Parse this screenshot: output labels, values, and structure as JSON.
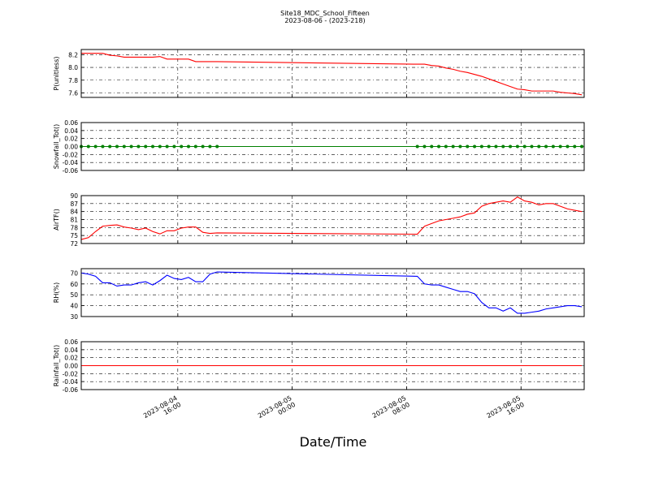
{
  "title": "Site18_MDC_School_Fifteen",
  "subtitle": "2023-08-06 - (2023-218)",
  "x_axis": {
    "label": "Date/Time",
    "xlim": [
      "2023-08-04 09:15",
      "2023-08-05 20:25"
    ],
    "xticks": [
      "2023-08-04 16:00",
      "2023-08-05 00:00",
      "2023-08-05 08:00",
      "2023-08-05 16:00"
    ],
    "x": [
      "2023-08-04 09:15",
      "2023-08-04 09:45",
      "2023-08-04 10:15",
      "2023-08-04 10:45",
      "2023-08-04 11:15",
      "2023-08-04 11:45",
      "2023-08-04 12:15",
      "2023-08-04 12:45",
      "2023-08-04 13:15",
      "2023-08-04 13:45",
      "2023-08-04 14:15",
      "2023-08-04 14:45",
      "2023-08-04 15:15",
      "2023-08-04 15:45",
      "2023-08-04 16:15",
      "2023-08-04 16:45",
      "2023-08-04 17:15",
      "2023-08-04 17:45",
      "2023-08-04 18:15",
      "2023-08-04 18:45",
      "2023-08-05 08:45",
      "2023-08-05 09:15",
      "2023-08-05 09:45",
      "2023-08-05 10:15",
      "2023-08-05 10:45",
      "2023-08-05 11:15",
      "2023-08-05 11:45",
      "2023-08-05 12:15",
      "2023-08-05 12:45",
      "2023-08-05 13:15",
      "2023-08-05 13:45",
      "2023-08-05 14:15",
      "2023-08-05 14:45",
      "2023-08-05 15:15",
      "2023-08-05 15:45",
      "2023-08-05 16:15",
      "2023-08-05 16:45",
      "2023-08-05 17:15",
      "2023-08-05 17:45",
      "2023-08-05 18:15",
      "2023-08-05 18:45",
      "2023-08-05 19:15",
      "2023-08-05 19:45",
      "2023-08-05 20:15"
    ]
  },
  "chart_data": [
    {
      "type": "line",
      "ylabel": "P(unitless)",
      "color": "#ff0000",
      "markers": false,
      "grid": true,
      "ylim": [
        7.53,
        8.28
      ],
      "yticks": [
        {
          "value": 7.6,
          "label": "7.6"
        },
        {
          "value": 7.8,
          "label": "7.8"
        },
        {
          "value": 8,
          "label": "8.0"
        },
        {
          "value": 8.2,
          "label": "8.2"
        }
      ],
      "values": [
        8.22,
        8.22,
        8.22,
        8.22,
        8.19,
        8.18,
        8.16,
        8.16,
        8.16,
        8.16,
        8.16,
        8.17,
        8.13,
        8.13,
        8.13,
        8.13,
        8.09,
        8.09,
        8.09,
        8.09,
        8.05,
        8.05,
        8.03,
        8.02,
        7.99,
        7.97,
        7.94,
        7.92,
        7.89,
        7.86,
        7.82,
        7.78,
        7.74,
        7.7,
        7.66,
        7.65,
        7.63,
        7.63,
        7.63,
        7.63,
        7.61,
        7.6,
        7.59,
        7.57
      ]
    },
    {
      "type": "line",
      "ylabel": "Snowfall_Tot()",
      "color": "#008000",
      "markers": true,
      "grid": true,
      "ylim": [
        -0.06,
        0.06
      ],
      "yticks": [
        -0.06,
        -0.04,
        -0.02,
        {
          "value": 0,
          "label": "0.00"
        },
        0.02,
        0.04,
        0.06
      ],
      "values": [
        0,
        0,
        0,
        0,
        0,
        0,
        0,
        0,
        0,
        0,
        0,
        0,
        0,
        0,
        0,
        0,
        0,
        0,
        0,
        0,
        0,
        0,
        0,
        0,
        0,
        0,
        0,
        0,
        0,
        0,
        0,
        0,
        0,
        0,
        0,
        0,
        0,
        0,
        0,
        0,
        0,
        0,
        0,
        0
      ]
    },
    {
      "type": "line",
      "ylabel": "AirTF()",
      "color": "#ff0000",
      "markers": false,
      "grid": true,
      "ylim": [
        72,
        90
      ],
      "yticks": [
        72,
        75,
        78,
        81,
        84,
        87,
        90
      ],
      "values": [
        73.5,
        74.2,
        76.5,
        78.5,
        78.8,
        79,
        78.2,
        77.8,
        77.2,
        77.8,
        76.5,
        75.6,
        76.8,
        76.8,
        77.8,
        78.2,
        78.2,
        76.2,
        75.8,
        76,
        75.5,
        78.5,
        79.5,
        80.5,
        81,
        81.5,
        82,
        83,
        83.5,
        86,
        87,
        87.5,
        88,
        87.5,
        89.5,
        88,
        87.5,
        86.5,
        87,
        87,
        86,
        85,
        84.5,
        84
      ]
    },
    {
      "type": "line",
      "ylabel": "RH(%)",
      "color": "#0000ff",
      "markers": false,
      "grid": true,
      "ylim": [
        30,
        74
      ],
      "yticks": [
        30,
        40,
        50,
        60,
        70
      ],
      "values": [
        70,
        69,
        67,
        61,
        61,
        58,
        59,
        59,
        61,
        62,
        59,
        63,
        68,
        65,
        64,
        66,
        62,
        62,
        69,
        71,
        67,
        60,
        59,
        59,
        57,
        55,
        53,
        53,
        51,
        43,
        38,
        38,
        35,
        38,
        33,
        33,
        34,
        35,
        37,
        38,
        39,
        40,
        40,
        39
      ]
    },
    {
      "type": "line",
      "ylabel": "Rainfall_Tot()",
      "color": "#ff0000",
      "markers": false,
      "grid": true,
      "ylim": [
        -0.06,
        0.06
      ],
      "yticks": [
        -0.06,
        -0.04,
        -0.02,
        {
          "value": 0,
          "label": "0.00"
        },
        0.02,
        0.04,
        0.06
      ],
      "values": [
        0,
        0,
        0,
        0,
        0,
        0,
        0,
        0,
        0,
        0,
        0,
        0,
        0,
        0,
        0,
        0,
        0,
        0,
        0,
        0,
        0,
        0,
        0,
        0,
        0,
        0,
        0,
        0,
        0,
        0,
        0,
        0,
        0,
        0,
        0,
        0,
        0,
        0,
        0,
        0,
        0,
        0,
        0,
        0
      ]
    }
  ]
}
